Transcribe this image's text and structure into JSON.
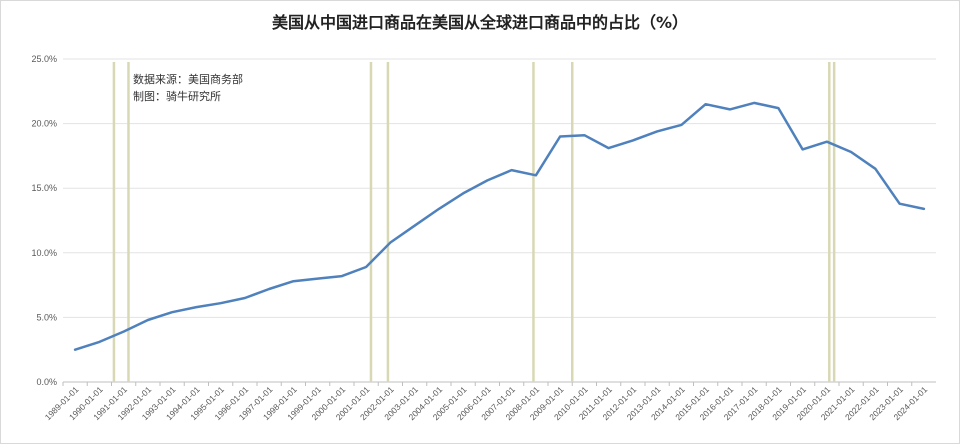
{
  "chart_data": {
    "type": "line",
    "title": "美国从中国进口商品在美国从全球进口商品中的占比（%）",
    "annotations": [
      "数据来源：美国商务部",
      "制图：骑牛研究所"
    ],
    "ylim": [
      0,
      25
    ],
    "y_ticks": [
      "0.0%",
      "5.0%",
      "10.0%",
      "15.0%",
      "20.0%",
      "25.0%"
    ],
    "grid": true,
    "categories": [
      "1989-01-01",
      "1990-01-01",
      "1991-01-01",
      "1992-01-01",
      "1993-01-01",
      "1994-01-01",
      "1995-01-01",
      "1996-01-01",
      "1997-01-01",
      "1998-01-01",
      "1999-01-01",
      "2000-01-01",
      "2001-01-01",
      "2002-01-01",
      "2003-01-01",
      "2004-01-01",
      "2005-01-01",
      "2006-01-01",
      "2007-01-01",
      "2008-01-01",
      "2009-01-01",
      "2010-01-01",
      "2011-01-01",
      "2012-01-01",
      "2013-01-01",
      "2014-01-01",
      "2015-01-01",
      "2016-01-01",
      "2017-01-01",
      "2018-01-01",
      "2019-01-01",
      "2020-01-01",
      "2021-01-01",
      "2022-01-01",
      "2023-01-01",
      "2024-01-01"
    ],
    "series": [
      {
        "name": "",
        "color": "#4f81bd",
        "values": [
          2.5,
          3.1,
          3.9,
          4.8,
          5.4,
          5.8,
          6.1,
          6.5,
          7.2,
          7.8,
          8.0,
          8.2,
          8.9,
          10.8,
          12.1,
          13.4,
          14.6,
          15.6,
          16.4,
          16.0,
          19.0,
          19.1,
          18.1,
          18.7,
          19.4,
          19.9,
          21.5,
          21.1,
          21.6,
          21.2,
          18.0,
          18.6,
          17.8,
          16.5,
          13.8,
          13.4
        ]
      }
    ],
    "recession_band_color": "#d8d9b4",
    "recession_markers": [
      1990.6,
      1991.2,
      2001.2,
      2001.9,
      2007.9,
      2009.5,
      2020.1,
      2020.3
    ]
  }
}
